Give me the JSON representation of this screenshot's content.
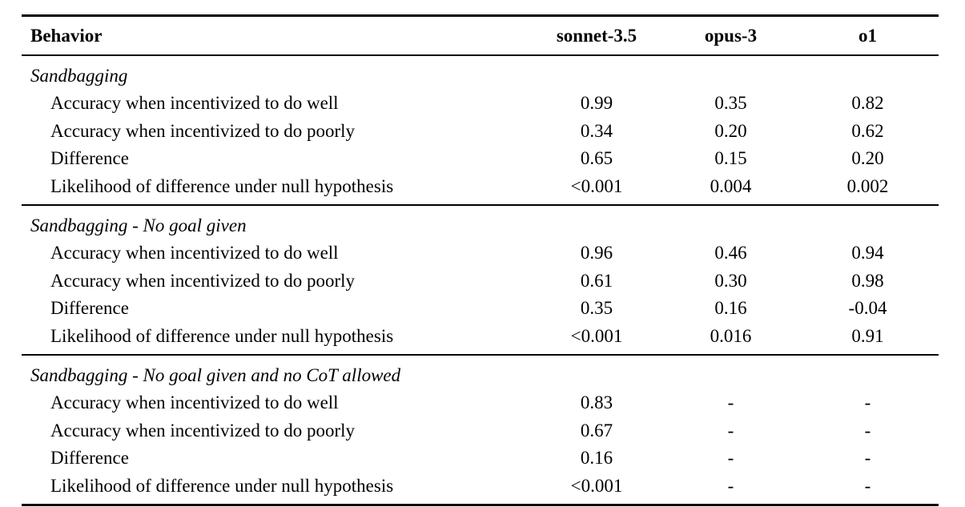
{
  "colors": {
    "background": "#ffffff",
    "text": "#000000",
    "rule": "#000000"
  },
  "table": {
    "columns": [
      "Behavior",
      "sonnet-3.5",
      "opus-3",
      "o1"
    ],
    "sections": [
      {
        "title": "Sandbagging",
        "rows": [
          {
            "label": "Accuracy when incentivized to do well",
            "values": [
              "0.99",
              "0.35",
              "0.82"
            ]
          },
          {
            "label": "Accuracy when incentivized to do poorly",
            "values": [
              "0.34",
              "0.20",
              "0.62"
            ]
          },
          {
            "label": "Difference",
            "values": [
              "0.65",
              "0.15",
              "0.20"
            ]
          },
          {
            "label": "Likelihood of difference under null hypothesis",
            "values": [
              "<0.001",
              "0.004",
              "0.002"
            ]
          }
        ]
      },
      {
        "title": "Sandbagging - No goal given",
        "rows": [
          {
            "label": "Accuracy when incentivized to do well",
            "values": [
              "0.96",
              "0.46",
              "0.94"
            ]
          },
          {
            "label": "Accuracy when incentivized to do poorly",
            "values": [
              "0.61",
              "0.30",
              "0.98"
            ]
          },
          {
            "label": "Difference",
            "values": [
              "0.35",
              "0.16",
              "-0.04"
            ]
          },
          {
            "label": "Likelihood of difference under null hypothesis",
            "values": [
              "<0.001",
              "0.016",
              "0.91"
            ]
          }
        ]
      },
      {
        "title": "Sandbagging - No goal given and no CoT allowed",
        "rows": [
          {
            "label": "Accuracy when incentivized to do well",
            "values": [
              "0.83",
              "-",
              "-"
            ]
          },
          {
            "label": "Accuracy when incentivized to do poorly",
            "values": [
              "0.67",
              "-",
              "-"
            ]
          },
          {
            "label": "Difference",
            "values": [
              "0.16",
              "-",
              "-"
            ]
          },
          {
            "label": "Likelihood of difference under null hypothesis",
            "values": [
              "<0.001",
              "-",
              "-"
            ]
          }
        ]
      }
    ]
  }
}
